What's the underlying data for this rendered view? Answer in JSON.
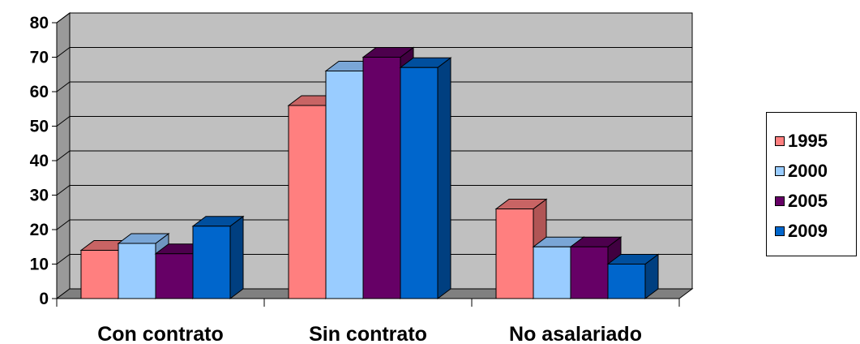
{
  "chart_data": {
    "type": "bar",
    "categories": [
      "Con contrato",
      "Sin contrato",
      "No asalariado"
    ],
    "series": [
      {
        "name": "1995",
        "values": [
          14,
          56,
          26
        ],
        "color": "#ff7f7f",
        "top_color": "#c86464",
        "side_color": "#b05555"
      },
      {
        "name": "2000",
        "values": [
          16,
          66,
          15
        ],
        "color": "#99ccff",
        "top_color": "#7aa6d6",
        "side_color": "#6f96c0"
      },
      {
        "name": "2005",
        "values": [
          13,
          70,
          15
        ],
        "color": "#660066",
        "top_color": "#4d004d",
        "side_color": "#400040"
      },
      {
        "name": "2009",
        "values": [
          21,
          67,
          10
        ],
        "color": "#0066cc",
        "top_color": "#004f9e",
        "side_color": "#003f80"
      }
    ],
    "yticks": [
      "0",
      "10",
      "20",
      "30",
      "40",
      "50",
      "60",
      "70",
      "80"
    ],
    "ylim": [
      0,
      80
    ],
    "grid": true,
    "legend_position": "right",
    "plot_background": "#c0c0c0",
    "floor_color": "#808080",
    "title": "",
    "xlabel": "",
    "ylabel": ""
  }
}
